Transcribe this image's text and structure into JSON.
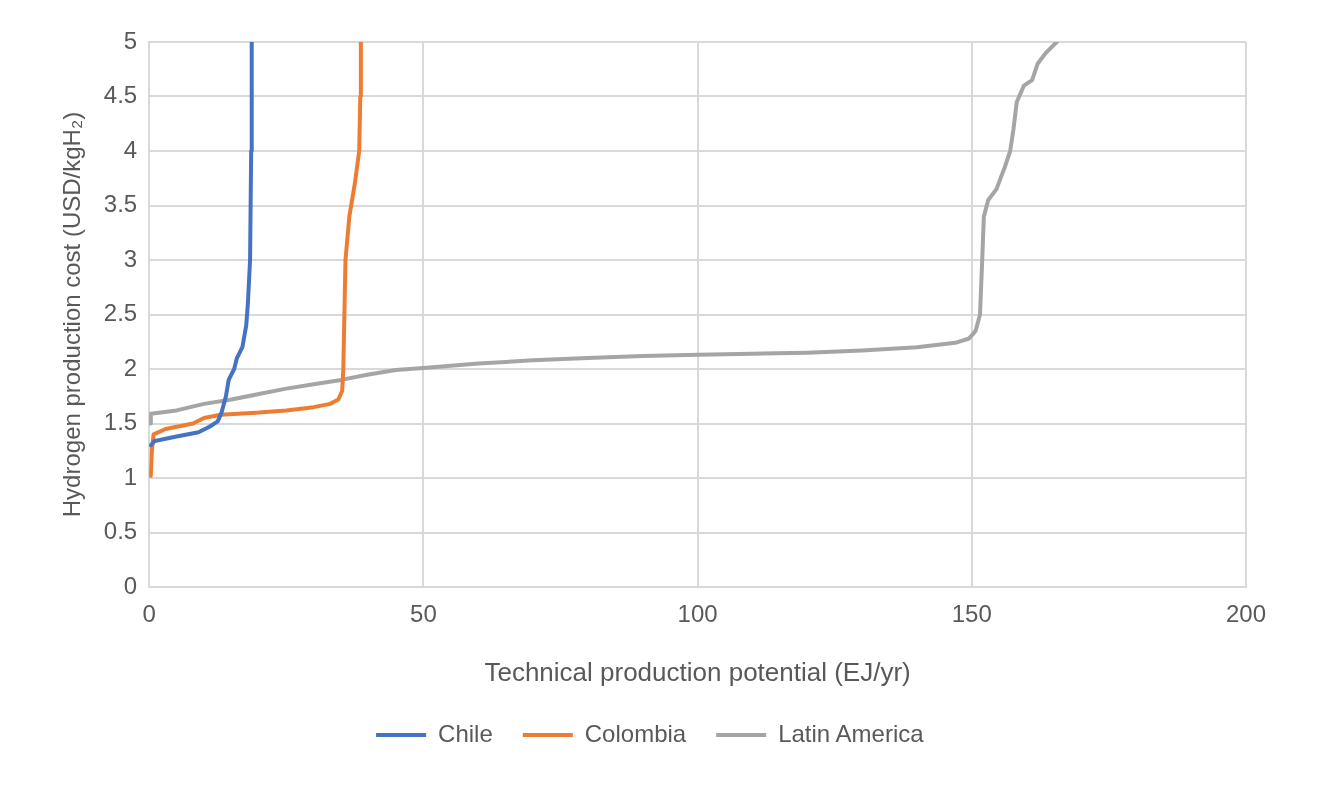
{
  "chart_data": {
    "type": "line",
    "xlabel": "Technical production potential (EJ/yr)",
    "ylabel": "Hydrogen production cost (USD/kgH₂)",
    "xlim": [
      0,
      200
    ],
    "xticks": [
      0,
      50,
      100,
      150,
      200
    ],
    "ylim": [
      0,
      5
    ],
    "yticks": [
      0,
      0.5,
      1,
      1.5,
      2,
      2.5,
      3,
      3.5,
      4,
      4.5,
      5
    ],
    "grid": true,
    "legend": "bottom",
    "marker": "none",
    "line_style": "solid",
    "series": [
      {
        "name": "Chile",
        "color": "#4472c4",
        "x": [
          0.3,
          1,
          5,
          9,
          11,
          12.5,
          13.2,
          14,
          14.5,
          15.5,
          16,
          17,
          17.7,
          18,
          18.4,
          18.6,
          18.7
        ],
        "values": [
          1.3,
          1.34,
          1.38,
          1.42,
          1.47,
          1.52,
          1.6,
          1.75,
          1.9,
          2.0,
          2.1,
          2.2,
          2.4,
          2.6,
          3,
          4,
          5
        ]
      },
      {
        "name": "Colombia",
        "color": "#ed7d31",
        "x": [
          0.3,
          0.5,
          0.8,
          3,
          8,
          10,
          13,
          20,
          25,
          30,
          33,
          34.5,
          35.2,
          35.4,
          35.6,
          35.8,
          36.5,
          37.5,
          38.3,
          38.5,
          38.6
        ],
        "values": [
          1.02,
          1.25,
          1.4,
          1.45,
          1.5,
          1.55,
          1.58,
          1.6,
          1.62,
          1.65,
          1.68,
          1.72,
          1.8,
          2.0,
          2.5,
          3,
          3.4,
          3.7,
          4,
          4.5,
          5
        ]
      },
      {
        "name": "Latin America",
        "color": "#a5a5a5",
        "x": [
          0.2,
          0.3,
          5,
          10,
          15,
          20,
          25,
          30,
          35,
          40,
          45,
          50,
          60,
          70,
          80,
          90,
          100,
          110,
          120,
          130,
          140,
          147,
          149.5,
          150.7,
          151.5,
          151.9,
          152.2,
          153,
          154.5,
          156,
          157,
          157.6,
          158.2,
          159.5,
          161,
          162,
          163.5,
          165.5
        ],
        "values": [
          1.5,
          1.59,
          1.62,
          1.68,
          1.72,
          1.77,
          1.82,
          1.86,
          1.9,
          1.95,
          1.99,
          2.01,
          2.05,
          2.08,
          2.1,
          2.12,
          2.13,
          2.14,
          2.15,
          2.17,
          2.2,
          2.24,
          2.28,
          2.35,
          2.5,
          3.0,
          3.4,
          3.55,
          3.65,
          3.85,
          4.0,
          4.2,
          4.45,
          4.6,
          4.65,
          4.8,
          4.9,
          5.0
        ]
      }
    ]
  }
}
